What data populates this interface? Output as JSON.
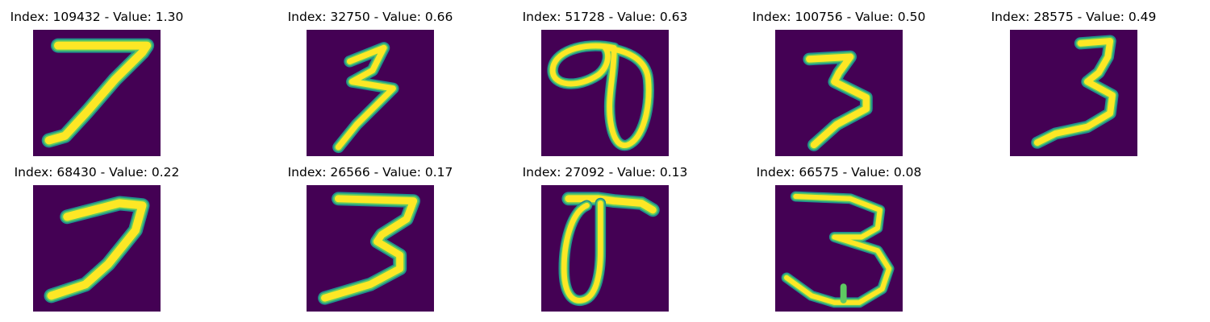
{
  "colors": {
    "background": "#440154",
    "edge_dark": "#3b528b",
    "edge_mid": "#21918c",
    "edge_light": "#5ec962",
    "stroke": "#fde725"
  },
  "panels": [
    {
      "title": "Index: 109432 - Value: 1.30",
      "glyph": "seven-digit"
    },
    {
      "title": "Index: 32750 - Value: 0.66",
      "glyph": "three-digit"
    },
    {
      "title": "Index: 51728 - Value: 0.63",
      "glyph": "loop-digit"
    },
    {
      "title": "Index: 100756 - Value: 0.50",
      "glyph": "three-digit"
    },
    {
      "title": "Index: 28575 - Value: 0.49",
      "glyph": "three-digit"
    },
    {
      "title": "Index: 68430 - Value: 0.22",
      "glyph": "seven-digit"
    },
    {
      "title": "Index: 26566 - Value: 0.17",
      "glyph": "three-digit"
    },
    {
      "title": "Index: 27092 - Value: 0.13",
      "glyph": "loop-digit"
    },
    {
      "title": "Index: 66575 - Value: 0.08",
      "glyph": "three-digit"
    }
  ]
}
